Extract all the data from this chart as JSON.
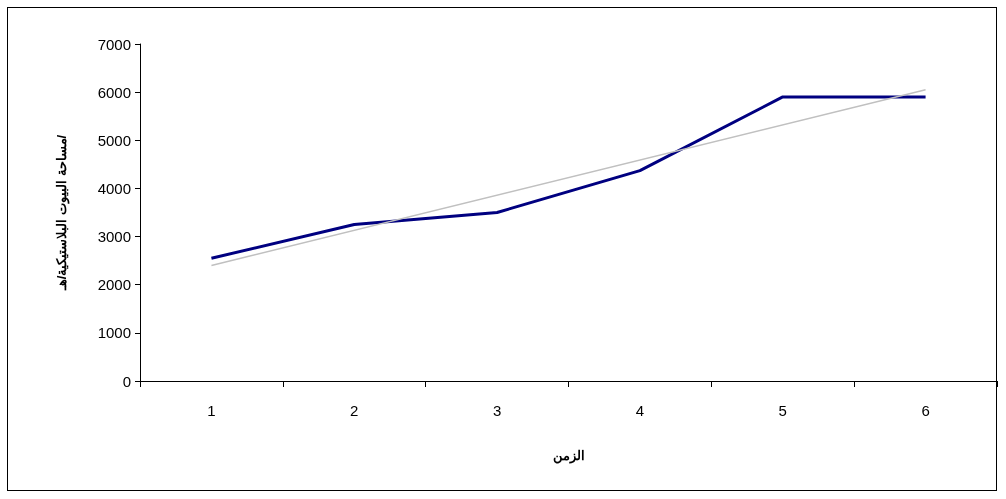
{
  "chart_data": {
    "type": "line",
    "xlabel": "الزمن",
    "ylabel": "مساحة البيوت البلاستيكية/هـ/",
    "categories": [
      "1",
      "2",
      "3",
      "4",
      "5",
      "6"
    ],
    "series": [
      {
        "color": "#000080",
        "values": [
          2550,
          3250,
          3500,
          4370,
          5900,
          5900
        ]
      },
      {
        "color": "#c0c0c0",
        "x": [
          "1",
          "6"
        ],
        "values": [
          2400,
          6050
        ]
      }
    ],
    "ylim": [
      0,
      7000
    ],
    "yticks": [
      0,
      1000,
      2000,
      3000,
      4000,
      5000,
      6000,
      7000
    ],
    "grid": false,
    "marker": "none"
  }
}
